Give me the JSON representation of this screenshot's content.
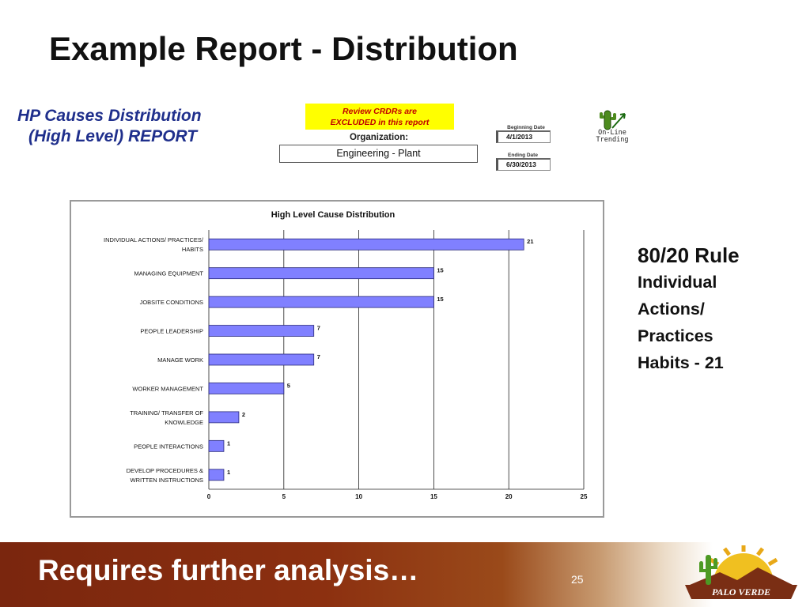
{
  "slide": {
    "title": "Example Report - Distribution",
    "page_number": "25",
    "footer_text": "Requires further analysis…"
  },
  "report": {
    "title_line1": "HP Causes Distribution",
    "title_line2": "(High Level) REPORT",
    "notice_line1": "Review CRDRs are",
    "notice_line2": "EXCLUDED in this report",
    "organization_label": "Organization:",
    "organization_value": "Engineering - Plant",
    "beginning_date_label": "Beginning Date",
    "beginning_date_value": "4/1/2013",
    "ending_date_label": "Ending Date",
    "ending_date_value": "6/30/2013",
    "online_trending_line1": "On-Line",
    "online_trending_line2": "Trending",
    "trend_icon": "cactus-trending-icon"
  },
  "note": {
    "heading": "80/20 Rule",
    "lines": [
      "Individual",
      "Actions/",
      "Practices",
      "Habits - 21"
    ]
  },
  "logo": {
    "text": "PALO VERDE",
    "icon": "palo-verde-sun-cactus-logo"
  },
  "colors": {
    "bar_fill": "#8080ff",
    "bar_stroke": "#2a2a7a",
    "report_title": "#1f2f8c",
    "notice_bg": "#ffff00",
    "notice_text": "#c00000",
    "banner": "#8c3010"
  },
  "chart_data": {
    "type": "bar",
    "orientation": "horizontal",
    "title": "High Level Cause Distribution",
    "categories": [
      [
        "INDIVIDUAL ACTIONS/ PRACTICES/",
        "HABITS"
      ],
      [
        "MANAGING EQUIPMENT"
      ],
      [
        "JOBSITE CONDITIONS"
      ],
      [
        "PEOPLE LEADERSHIP"
      ],
      [
        "MANAGE WORK"
      ],
      [
        "WORKER MANAGEMENT"
      ],
      [
        "TRAINING/ TRANSFER OF",
        "KNOWLEDGE"
      ],
      [
        "PEOPLE INTERACTIONS"
      ],
      [
        "DEVELOP PROCEDURES &",
        "WRITTEN INSTRUCTIONS"
      ]
    ],
    "values": [
      21,
      15,
      15,
      7,
      7,
      5,
      2,
      1,
      1
    ],
    "xlim": [
      0,
      25
    ],
    "xticks": [
      0,
      5,
      10,
      15,
      20,
      25
    ],
    "xlabel": "",
    "ylabel": "",
    "grid": "vertical",
    "data_labels": true
  }
}
